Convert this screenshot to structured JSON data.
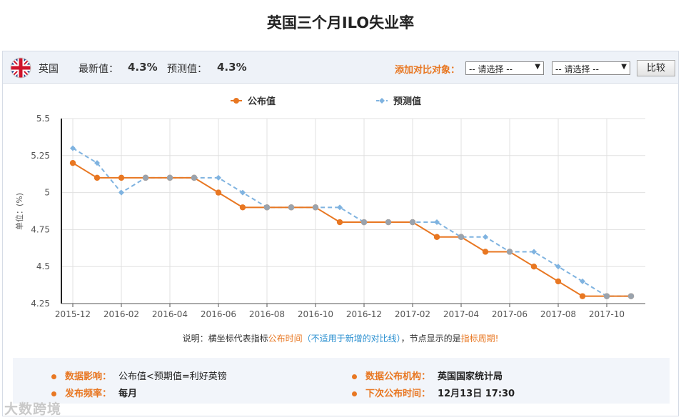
{
  "page": {
    "title": "英国三个月ILO失业率"
  },
  "header": {
    "country": "英国",
    "latest_label": "最新值：",
    "latest_value": "4.3%",
    "forecast_label": "预测值：",
    "forecast_value": "4.3%",
    "compare_label": "添加对比对象：",
    "select1": "-- 请选择 --",
    "select2": "-- 请选择 --",
    "compare_button": "比较"
  },
  "chart_data": {
    "type": "line",
    "ylabel": "单位：(%)",
    "ylim": [
      4.25,
      5.5
    ],
    "yticks": [
      "5.5",
      "5.25",
      "5",
      "4.75",
      "4.5",
      "4.25"
    ],
    "ytick_values": [
      5.5,
      5.25,
      5.0,
      4.75,
      4.5,
      4.25
    ],
    "xtick_labels": [
      "2015-12",
      "2016-02",
      "2016-04",
      "2016-06",
      "2016-08",
      "2016-10",
      "2016-12",
      "2017-02",
      "2017-04",
      "2017-06",
      "2017-08",
      "2017-10"
    ],
    "x": [
      "2015-12",
      "2016-01",
      "2016-02",
      "2016-03",
      "2016-04",
      "2016-05",
      "2016-06",
      "2016-07",
      "2016-08",
      "2016-09",
      "2016-10",
      "2016-11",
      "2016-12",
      "2017-01",
      "2017-02",
      "2017-03",
      "2017-04",
      "2017-05",
      "2017-06",
      "2017-07",
      "2017-08",
      "2017-09",
      "2017-10",
      "2017-11"
    ],
    "grid": true,
    "legend_position": "top-center",
    "series": [
      {
        "name": "公布值",
        "color": "#e87722",
        "style": "solid",
        "values": [
          5.2,
          5.1,
          5.1,
          5.1,
          5.1,
          5.1,
          5.0,
          4.9,
          4.9,
          4.9,
          4.9,
          4.8,
          4.8,
          4.8,
          4.8,
          4.7,
          4.7,
          4.6,
          4.6,
          4.5,
          4.4,
          4.3,
          4.3,
          4.3
        ]
      },
      {
        "name": "预测值",
        "color": "#7fb3e0",
        "style": "dashed",
        "values": [
          5.3,
          5.2,
          5.0,
          5.1,
          5.1,
          5.1,
          5.1,
          5.0,
          4.9,
          4.9,
          4.9,
          4.9,
          4.8,
          4.8,
          4.8,
          4.8,
          4.7,
          4.7,
          4.6,
          4.6,
          4.5,
          4.4,
          4.3,
          4.3
        ]
      }
    ]
  },
  "note": {
    "prefix": "说明：横坐标代表指标",
    "highlight1": "公布时间",
    "paren": "（不适用于新增的对比线）",
    "middle": "，节点显示的是",
    "highlight2": "指标周期!"
  },
  "info": {
    "impact_label": "数据影响：",
    "impact_value": "公布值<预期值=利好英镑",
    "agency_label": "数据公布机构：",
    "agency_value": "英国国家统计局",
    "frequency_label": "发布频率：",
    "frequency_value": "每月",
    "next_label": "下次公布时间：",
    "next_value": "12月13日 17:30"
  },
  "watermark": "大数跨境",
  "colors": {
    "accent": "#e87722",
    "forecast": "#7fb3e0",
    "topbar_bg": "#eef2f8"
  }
}
